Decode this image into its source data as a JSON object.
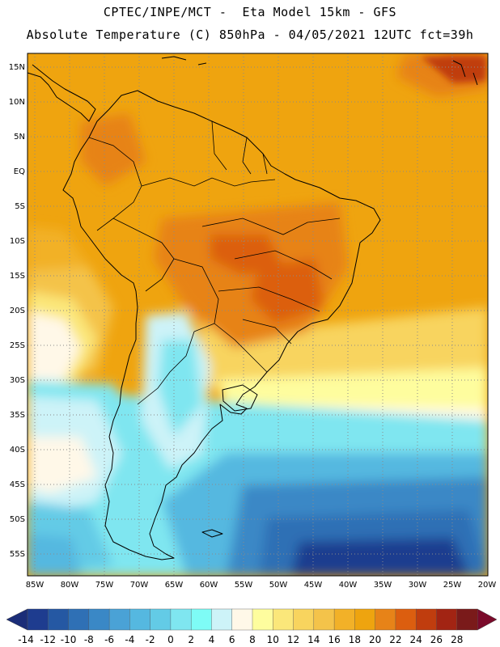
{
  "header": {
    "line1": "CPTEC/INPE/MCT -  Eta Model 15km - GFS",
    "line2": "Absolute Temperature (C) 850hPa - 04/05/2021 12UTC fct=39h"
  },
  "map": {
    "lat_labels": [
      "15N",
      "10N",
      "5N",
      "EQ",
      "5S",
      "10S",
      "15S",
      "20S",
      "25S",
      "30S",
      "35S",
      "40S",
      "45S",
      "50S",
      "55S"
    ],
    "lon_labels": [
      "85W",
      "80W",
      "75W",
      "70W",
      "65W",
      "60W",
      "55W",
      "50W",
      "45W",
      "40W",
      "35W",
      "30W",
      "25W",
      "20W"
    ]
  },
  "colorbar": {
    "labels": [
      "-14",
      "-12",
      "-10",
      "-8",
      "-6",
      "-4",
      "-2",
      "0",
      "2",
      "4",
      "6",
      "8",
      "10",
      "12",
      "14",
      "16",
      "18",
      "20",
      "22",
      "24",
      "26",
      "28"
    ],
    "colors": [
      "#1e3c8f",
      "#2558a3",
      "#2f70b5",
      "#3a88c6",
      "#4aa2d6",
      "#55b8e0",
      "#63cbe6",
      "#7fe6f0",
      "#7efcf6",
      "#cdf3f8",
      "#fff8e8",
      "#fefd9e",
      "#fbe77a",
      "#f8d45e",
      "#f4c34a",
      "#f2b128",
      "#eea40f",
      "#e78318",
      "#dc5e0f",
      "#c03d0e",
      "#a22413",
      "#7a1a1a"
    ],
    "left_arrow_color": "#1b2d78",
    "right_arrow_color": "#7a0a2a"
  }
}
